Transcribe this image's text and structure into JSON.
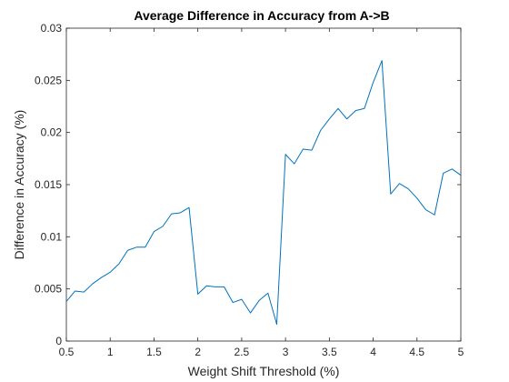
{
  "chart_data": {
    "type": "line",
    "title": "Average Difference in Accuracy from A->B",
    "xlabel": "Weight Shift Threshold (%)",
    "ylabel": "Difference in Accuracy (%)",
    "xlim": [
      0.5,
      5
    ],
    "ylim": [
      0,
      0.03
    ],
    "xticks": [
      0.5,
      1,
      1.5,
      2,
      2.5,
      3,
      3.5,
      4,
      4.5,
      5
    ],
    "xtick_labels": [
      "0.5",
      "1",
      "1.5",
      "2",
      "2.5",
      "3",
      "3.5",
      "4",
      "4.5",
      "5"
    ],
    "yticks": [
      0,
      0.005,
      0.01,
      0.015,
      0.02,
      0.025,
      0.03
    ],
    "ytick_labels": [
      "0",
      "0.005",
      "0.01",
      "0.015",
      "0.02",
      "0.025",
      "0.03"
    ],
    "grid": false,
    "line_color": "#0072bd",
    "series": [
      {
        "x": [
          0.5,
          0.6,
          0.7,
          0.8,
          0.9,
          1.0,
          1.1,
          1.2,
          1.3,
          1.4,
          1.5,
          1.6,
          1.7,
          1.8,
          1.9,
          2.0,
          2.1,
          2.2,
          2.3,
          2.4,
          2.5,
          2.6,
          2.7,
          2.8,
          2.9,
          3.0,
          3.1,
          3.2,
          3.3,
          3.4,
          3.5,
          3.6,
          3.7,
          3.8,
          3.9,
          4.0,
          4.1,
          4.2,
          4.3,
          4.4,
          4.5,
          4.6,
          4.7,
          4.8,
          4.9,
          5.0
        ],
        "values": [
          0.0038,
          0.0048,
          0.0047,
          0.0055,
          0.0061,
          0.0066,
          0.0074,
          0.0087,
          0.009,
          0.009,
          0.0105,
          0.011,
          0.0122,
          0.0123,
          0.0128,
          0.0045,
          0.0053,
          0.0052,
          0.0052,
          0.0037,
          0.004,
          0.0027,
          0.0039,
          0.0046,
          0.0016,
          0.0179,
          0.017,
          0.0184,
          0.0183,
          0.0202,
          0.0213,
          0.0223,
          0.0213,
          0.0221,
          0.0223,
          0.0248,
          0.0269,
          0.0141,
          0.0151,
          0.0146,
          0.0137,
          0.0126,
          0.0121,
          0.0161,
          0.0165,
          0.0159
        ]
      }
    ]
  }
}
